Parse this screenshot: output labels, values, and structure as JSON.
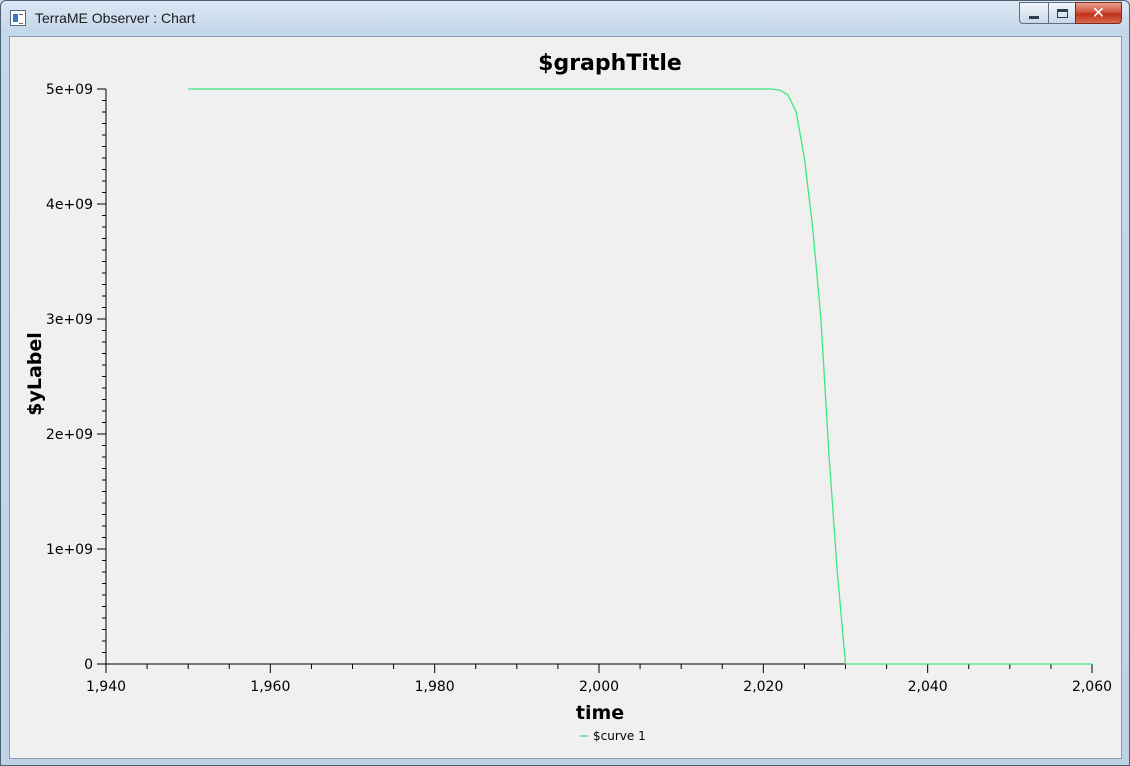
{
  "window": {
    "title": "TerraME Observer : Chart",
    "close_glyph": "✕"
  },
  "chart_data": {
    "type": "line",
    "title": "$graphTitle",
    "xlabel": "time",
    "ylabel": "$yLabel",
    "xlim": [
      1940,
      2060
    ],
    "ylim": [
      0,
      5000000000
    ],
    "x_ticks": [
      "1,940",
      "1,960",
      "1,980",
      "2,000",
      "2,020",
      "2,040",
      "2,060"
    ],
    "y_ticks": [
      "0",
      "1e+09",
      "2e+09",
      "3e+09",
      "4e+09",
      "5e+09"
    ],
    "grid": false,
    "legend_position": "bottom-center",
    "series": [
      {
        "name": "$curve 1",
        "color": "#3ee87f",
        "x": [
          1950,
          2021,
          2022,
          2023,
          2024,
          2025,
          2026,
          2027,
          2028,
          2029,
          2030,
          2060
        ],
        "y": [
          5000000000,
          5000000000,
          4990000000,
          4950000000,
          4800000000,
          4400000000,
          3800000000,
          3000000000,
          1800000000,
          800000000,
          0,
          0
        ]
      }
    ]
  }
}
